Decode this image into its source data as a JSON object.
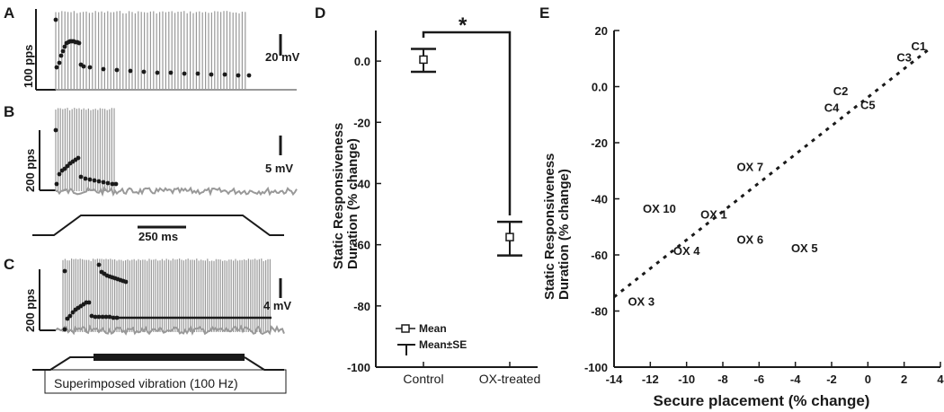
{
  "panels": {
    "A": {
      "letter": "A",
      "rate_scale": "100 pps",
      "voltage_scale": "20 mV",
      "rate_points": [
        [
          62,
          22
        ],
        [
          63,
          75
        ],
        [
          66,
          70
        ],
        [
          68,
          62
        ],
        [
          70,
          57
        ],
        [
          72,
          52
        ],
        [
          74,
          48
        ],
        [
          76,
          47
        ],
        [
          78,
          46
        ],
        [
          80,
          46
        ],
        [
          82,
          46
        ],
        [
          84,
          47
        ],
        [
          86,
          47
        ],
        [
          88,
          48
        ],
        [
          90,
          72
        ],
        [
          93,
          74
        ],
        [
          100,
          75
        ],
        [
          115,
          77
        ],
        [
          130,
          78
        ],
        [
          145,
          79
        ],
        [
          160,
          80
        ],
        [
          175,
          81
        ],
        [
          190,
          81
        ],
        [
          205,
          82
        ],
        [
          220,
          82
        ],
        [
          235,
          83
        ],
        [
          250,
          83
        ],
        [
          265,
          84
        ],
        [
          277,
          84
        ]
      ],
      "spikes_x_range": [
        62,
        276
      ]
    },
    "B": {
      "letter": "B",
      "rate_scale": "200 pps",
      "voltage_scale": "5 mV",
      "rate_points": [
        [
          62,
          145
        ],
        [
          63,
          205
        ],
        [
          66,
          194
        ],
        [
          69,
          190
        ],
        [
          72,
          188
        ],
        [
          75,
          185
        ],
        [
          78,
          182
        ],
        [
          81,
          180
        ],
        [
          84,
          178
        ],
        [
          87,
          176
        ],
        [
          90,
          197
        ],
        [
          95,
          199
        ],
        [
          100,
          200
        ],
        [
          105,
          201
        ],
        [
          110,
          202
        ],
        [
          115,
          203
        ],
        [
          120,
          204
        ],
        [
          125,
          205
        ],
        [
          129,
          205
        ]
      ],
      "spikes_x_range": [
        62,
        128
      ]
    },
    "C": {
      "letter": "C",
      "rate_scale": "200 pps",
      "voltage_scale": "4 mV",
      "rate_points": [
        [
          72,
          367
        ],
        [
          75,
          355
        ],
        [
          78,
          352
        ],
        [
          81,
          348
        ],
        [
          84,
          345
        ],
        [
          87,
          343
        ],
        [
          90,
          341
        ],
        [
          93,
          339
        ],
        [
          96,
          337
        ],
        [
          99,
          337
        ],
        [
          102,
          352
        ],
        [
          106,
          353
        ],
        [
          110,
          353
        ],
        [
          114,
          353
        ],
        [
          118,
          353
        ],
        [
          122,
          353
        ],
        [
          126,
          354
        ],
        [
          130,
          354
        ]
      ],
      "upper_points": [
        [
          72,
          302
        ],
        [
          110,
          295
        ],
        [
          113,
          303
        ],
        [
          116,
          305
        ],
        [
          119,
          307
        ],
        [
          122,
          308
        ],
        [
          125,
          309
        ],
        [
          128,
          310
        ],
        [
          131,
          311
        ],
        [
          134,
          312
        ],
        [
          137,
          313
        ],
        [
          140,
          314
        ]
      ],
      "sustained_line_end_x": 302,
      "spikes_x_range": [
        70,
        302
      ]
    },
    "stimulus_labels": {
      "time_scale": "250 ms",
      "vibration": "Superimposed vibration (100 Hz)"
    },
    "D": {
      "letter": "D",
      "significance": "*",
      "legend": {
        "mean": "Mean",
        "mean_se": "Mean±SE"
      }
    },
    "E": {
      "letter": "E"
    }
  },
  "chart_data": [
    {
      "type": "scatter",
      "panel": "D",
      "categories": [
        "Control",
        "OX-treated"
      ],
      "series": [
        {
          "name": "Mean",
          "values": [
            0.5,
            -57.5
          ]
        }
      ],
      "error": [
        {
          "low": -3.5,
          "high": 4.0
        },
        {
          "low": -63.5,
          "high": -52.5
        }
      ],
      "ylabel": "Static Responsiveness Duration (% change)",
      "ylim": [
        -100,
        10
      ],
      "yticks": [
        "-100",
        "-80",
        "-60",
        "-40",
        "-20",
        "0.0"
      ]
    },
    {
      "type": "scatter",
      "panel": "E",
      "xlabel": "Secure placement (% change)",
      "ylabel": "Static Responsiveness Duration (% change)",
      "xlim": [
        -14,
        4
      ],
      "ylim": [
        -100,
        20
      ],
      "xticks": [
        "-14",
        "-12",
        "-10",
        "-8",
        "-6",
        "-4",
        "-2",
        "0",
        "2",
        "4"
      ],
      "yticks": [
        "-100",
        "-80",
        "-60",
        "-40",
        "-20",
        "0.0",
        "20"
      ],
      "points": [
        {
          "label": "C1",
          "x": 2.8,
          "y": 13
        },
        {
          "label": "C3",
          "x": 2.0,
          "y": 9
        },
        {
          "label": "C2",
          "x": -1.5,
          "y": -3
        },
        {
          "label": "C4",
          "x": -2.0,
          "y": -9
        },
        {
          "label": "C5",
          "x": 0.0,
          "y": -8
        },
        {
          "label": "OX 7",
          "x": -6.5,
          "y": -30
        },
        {
          "label": "OX 10",
          "x": -11.5,
          "y": -45
        },
        {
          "label": "OX 1",
          "x": -8.5,
          "y": -47
        },
        {
          "label": "OX 6",
          "x": -6.5,
          "y": -56
        },
        {
          "label": "OX 5",
          "x": -3.5,
          "y": -59
        },
        {
          "label": "OX 4",
          "x": -10.0,
          "y": -60
        },
        {
          "label": "OX 3",
          "x": -12.5,
          "y": -78
        }
      ],
      "trend_line": {
        "x": [
          -14,
          3.5
        ],
        "y": [
          -75,
          14
        ]
      }
    }
  ]
}
